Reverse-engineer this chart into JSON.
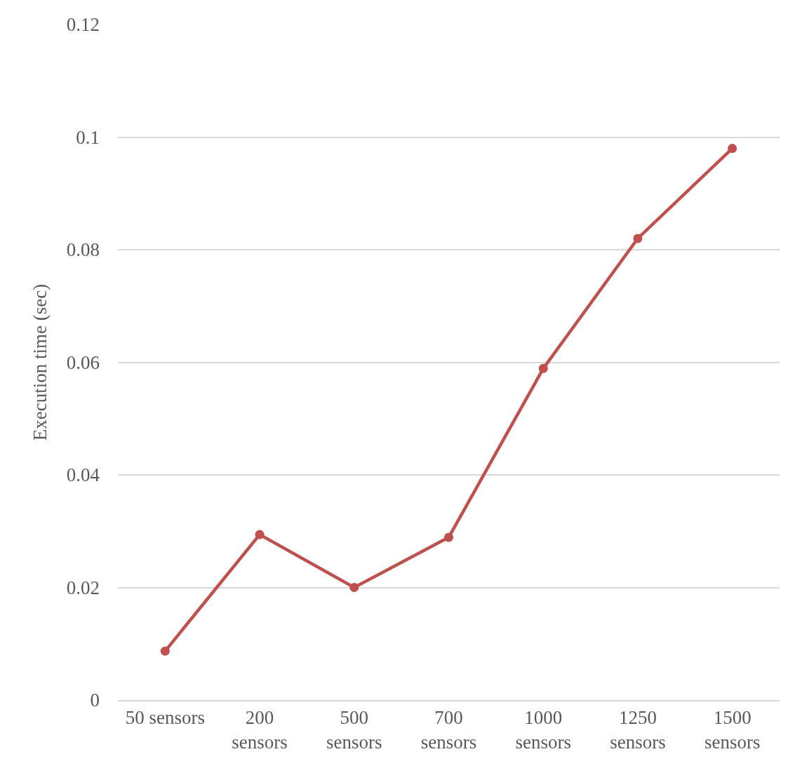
{
  "chart_data": {
    "type": "line",
    "ylabel": "Execution time (sec)",
    "categories": [
      "50 sensors",
      "200 sensors",
      "500 sensors",
      "700 sensors",
      "1000 sensors",
      "1250 sensors",
      "1500 sensors"
    ],
    "series": [
      {
        "color": "#c0504d",
        "values": [
          0.0087,
          0.0294,
          0.02,
          0.0289,
          0.0589,
          0.082,
          0.098
        ]
      }
    ],
    "ylim": [
      0,
      0.12
    ],
    "yticks": [
      0,
      0.02,
      0.04,
      0.06,
      0.08,
      0.1,
      0.12
    ],
    "grid": "y",
    "marker": "circle",
    "line_style": "solid",
    "legend": false
  }
}
